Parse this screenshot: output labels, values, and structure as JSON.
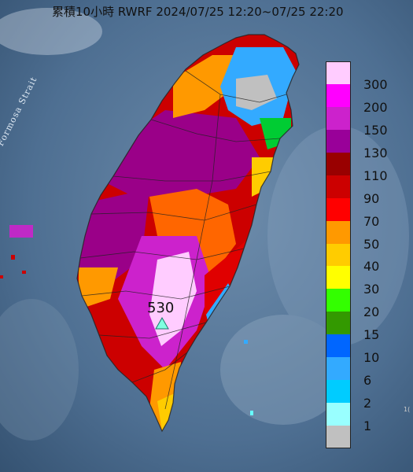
{
  "header": {
    "title": "累積10小時 RWRF 2024/07/25 12:20~07/25 22:20"
  },
  "map": {
    "strait_label": "Formosa Strait",
    "corner_text": "1("
  },
  "peak": {
    "value": "530"
  },
  "legend": {
    "items": [
      {
        "label": "300",
        "color": "#ffccff"
      },
      {
        "label": "200",
        "color": "#ff00ff"
      },
      {
        "label": "150",
        "color": "#cc22cc"
      },
      {
        "label": "130",
        "color": "#990099"
      },
      {
        "label": "110",
        "color": "#990000"
      },
      {
        "label": "90",
        "color": "#cc0000"
      },
      {
        "label": "70",
        "color": "#ff0000"
      },
      {
        "label": "50",
        "color": "#ff9900"
      },
      {
        "label": "40",
        "color": "#ffcc00"
      },
      {
        "label": "30",
        "color": "#ffff00"
      },
      {
        "label": "20",
        "color": "#33ff00"
      },
      {
        "label": "15",
        "color": "#339900"
      },
      {
        "label": "10",
        "color": "#0066ff"
      },
      {
        "label": "6",
        "color": "#33aaff"
      },
      {
        "label": "2",
        "color": "#00ccff"
      },
      {
        "label": "1",
        "color": "#99ffff"
      },
      {
        "label": "",
        "color": "#c0c0c0"
      }
    ]
  }
}
